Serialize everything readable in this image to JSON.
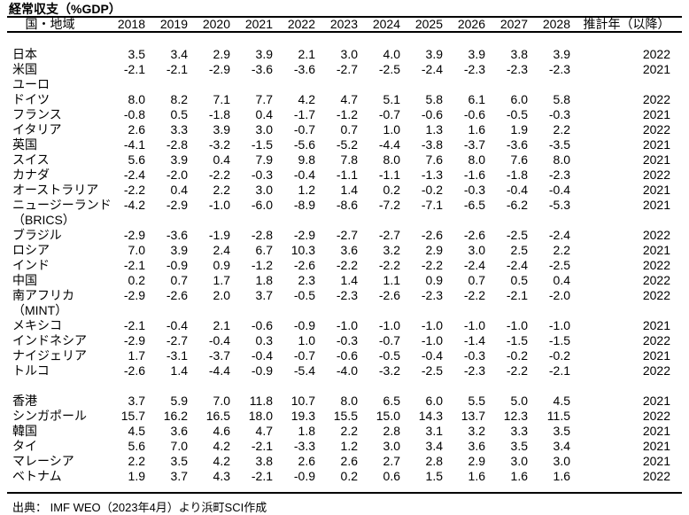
{
  "title": "経常収支（%GDP）",
  "header": {
    "country": "国・地域",
    "years": [
      "2018",
      "2019",
      "2020",
      "2021",
      "2022",
      "2023",
      "2024",
      "2025",
      "2026",
      "2027",
      "2028"
    ],
    "estimate": "推計年（以降）"
  },
  "table": {
    "rows": [
      {
        "type": "spacer"
      },
      {
        "type": "data",
        "label": "日本",
        "values": [
          "3.5",
          "3.4",
          "2.9",
          "3.9",
          "2.1",
          "3.0",
          "4.0",
          "3.9",
          "3.9",
          "3.8",
          "3.9"
        ],
        "est": "2022"
      },
      {
        "type": "data",
        "label": "米国",
        "values": [
          "-2.1",
          "-2.1",
          "-2.9",
          "-3.6",
          "-3.6",
          "-2.7",
          "-2.5",
          "-2.4",
          "-2.3",
          "-2.3",
          "-2.3"
        ],
        "est": "2021"
      },
      {
        "type": "group",
        "label": "ユーロ",
        "values": [],
        "est": ""
      },
      {
        "type": "data",
        "label": "ドイツ",
        "values": [
          "8.0",
          "8.2",
          "7.1",
          "7.7",
          "4.2",
          "4.7",
          "5.1",
          "5.8",
          "6.1",
          "6.0",
          "5.8"
        ],
        "est": "2022"
      },
      {
        "type": "data",
        "label": "フランス",
        "values": [
          "-0.8",
          "0.5",
          "-1.8",
          "0.4",
          "-1.7",
          "-1.2",
          "-0.7",
          "-0.6",
          "-0.6",
          "-0.5",
          "-0.3"
        ],
        "est": "2021"
      },
      {
        "type": "data",
        "label": "イタリア",
        "values": [
          "2.6",
          "3.3",
          "3.9",
          "3.0",
          "-0.7",
          "0.7",
          "1.0",
          "1.3",
          "1.6",
          "1.9",
          "2.2"
        ],
        "est": "2022"
      },
      {
        "type": "data",
        "label": "英国",
        "values": [
          "-4.1",
          "-2.8",
          "-3.2",
          "-1.5",
          "-5.6",
          "-5.2",
          "-4.4",
          "-3.8",
          "-3.7",
          "-3.6",
          "-3.5"
        ],
        "est": "2021"
      },
      {
        "type": "data",
        "label": "スイス",
        "values": [
          "5.6",
          "3.9",
          "0.4",
          "7.9",
          "9.8",
          "7.8",
          "8.0",
          "7.6",
          "8.0",
          "7.6",
          "8.0"
        ],
        "est": "2021"
      },
      {
        "type": "data",
        "label": "カナダ",
        "values": [
          "-2.4",
          "-2.0",
          "-2.2",
          "-0.3",
          "-0.4",
          "-1.1",
          "-1.1",
          "-1.3",
          "-1.6",
          "-1.8",
          "-2.3"
        ],
        "est": "2022"
      },
      {
        "type": "data",
        "label": "オーストラリア",
        "values": [
          "-2.2",
          "0.4",
          "2.2",
          "3.0",
          "1.2",
          "1.4",
          "0.2",
          "-0.2",
          "-0.3",
          "-0.4",
          "-0.4"
        ],
        "est": "2021"
      },
      {
        "type": "data",
        "label": "ニュージーランド",
        "values": [
          "-4.2",
          "-2.9",
          "-1.0",
          "-6.0",
          "-8.9",
          "-8.6",
          "-7.2",
          "-7.1",
          "-6.5",
          "-6.2",
          "-5.3"
        ],
        "est": "2021"
      },
      {
        "type": "group",
        "label": "（BRICS）",
        "values": [],
        "est": ""
      },
      {
        "type": "data",
        "label": "ブラジル",
        "values": [
          "-2.9",
          "-3.6",
          "-1.9",
          "-2.8",
          "-2.9",
          "-2.7",
          "-2.7",
          "-2.6",
          "-2.6",
          "-2.5",
          "-2.4"
        ],
        "est": "2022"
      },
      {
        "type": "data",
        "label": "ロシア",
        "values": [
          "7.0",
          "3.9",
          "2.4",
          "6.7",
          "10.3",
          "3.6",
          "3.2",
          "2.9",
          "3.0",
          "2.5",
          "2.2"
        ],
        "est": "2021"
      },
      {
        "type": "data",
        "label": "インド",
        "values": [
          "-2.1",
          "-0.9",
          "0.9",
          "-1.2",
          "-2.6",
          "-2.2",
          "-2.2",
          "-2.2",
          "-2.4",
          "-2.4",
          "-2.5"
        ],
        "est": "2022"
      },
      {
        "type": "data",
        "label": "中国",
        "values": [
          "0.2",
          "0.7",
          "1.7",
          "1.8",
          "2.3",
          "1.4",
          "1.1",
          "0.9",
          "0.7",
          "0.5",
          "0.4"
        ],
        "est": "2022"
      },
      {
        "type": "data",
        "label": "南アフリカ",
        "values": [
          "-2.9",
          "-2.6",
          "2.0",
          "3.7",
          "-0.5",
          "-2.3",
          "-2.6",
          "-2.3",
          "-2.2",
          "-2.1",
          "-2.0"
        ],
        "est": "2022"
      },
      {
        "type": "group",
        "label": "（MINT）",
        "values": [],
        "est": ""
      },
      {
        "type": "data",
        "label": "メキシコ",
        "values": [
          "-2.1",
          "-0.4",
          "2.1",
          "-0.6",
          "-0.9",
          "-1.0",
          "-1.0",
          "-1.0",
          "-1.0",
          "-1.0",
          "-1.0"
        ],
        "est": "2021"
      },
      {
        "type": "data",
        "label": "インドネシア",
        "values": [
          "-2.9",
          "-2.7",
          "-0.4",
          "0.3",
          "1.0",
          "-0.3",
          "-0.7",
          "-1.0",
          "-1.4",
          "-1.5",
          "-1.5"
        ],
        "est": "2022"
      },
      {
        "type": "data",
        "label": "ナイジェリア",
        "values": [
          "1.7",
          "-3.1",
          "-3.7",
          "-0.4",
          "-0.7",
          "-0.6",
          "-0.5",
          "-0.4",
          "-0.3",
          "-0.2",
          "-0.2"
        ],
        "est": "2021"
      },
      {
        "type": "data",
        "label": "トルコ",
        "values": [
          "-2.6",
          "1.4",
          "-4.4",
          "-0.9",
          "-5.4",
          "-4.0",
          "-3.2",
          "-2.5",
          "-2.3",
          "-2.2",
          "-2.1"
        ],
        "est": "2022"
      },
      {
        "type": "spacer"
      },
      {
        "type": "data",
        "label": "香港",
        "values": [
          "3.7",
          "5.9",
          "7.0",
          "11.8",
          "10.7",
          "8.0",
          "6.5",
          "6.0",
          "5.5",
          "5.0",
          "4.5"
        ],
        "est": "2021"
      },
      {
        "type": "data",
        "label": "シンガポール",
        "values": [
          "15.7",
          "16.2",
          "16.5",
          "18.0",
          "19.3",
          "15.5",
          "15.0",
          "14.3",
          "13.7",
          "12.3",
          "11.5"
        ],
        "est": "2022"
      },
      {
        "type": "data",
        "label": "韓国",
        "values": [
          "4.5",
          "3.6",
          "4.6",
          "4.7",
          "1.8",
          "2.2",
          "2.8",
          "3.1",
          "3.2",
          "3.3",
          "3.5"
        ],
        "est": "2021"
      },
      {
        "type": "data",
        "label": "タイ",
        "values": [
          "5.6",
          "7.0",
          "4.2",
          "-2.1",
          "-3.3",
          "1.2",
          "3.0",
          "3.4",
          "3.6",
          "3.5",
          "3.4"
        ],
        "est": "2021"
      },
      {
        "type": "data",
        "label": "マレーシア",
        "values": [
          "2.2",
          "3.5",
          "4.2",
          "3.8",
          "2.6",
          "2.6",
          "2.7",
          "2.8",
          "2.9",
          "3.0",
          "3.0"
        ],
        "est": "2021"
      },
      {
        "type": "data",
        "label": "ベトナム",
        "values": [
          "1.9",
          "3.7",
          "4.3",
          "-2.1",
          "-0.9",
          "0.2",
          "0.6",
          "1.5",
          "1.6",
          "1.6",
          "1.6"
        ],
        "est": "2022"
      },
      {
        "type": "end-spacer"
      }
    ]
  },
  "source": "出典： IMF WEO（2023年4月）より浜町SCI作成"
}
